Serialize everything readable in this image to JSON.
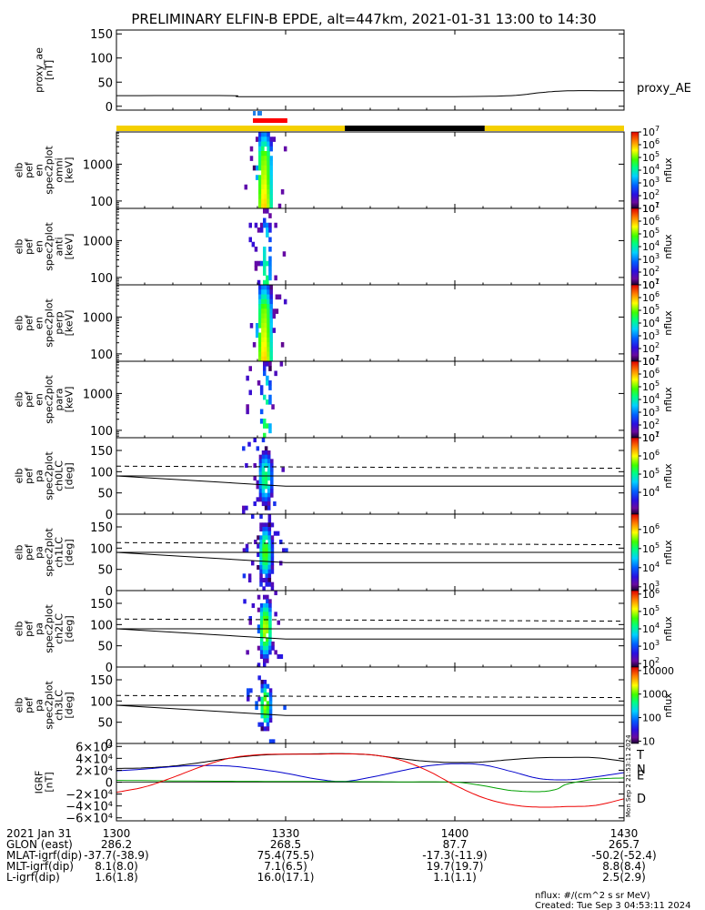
{
  "chart_data": {
    "type": "heatmap",
    "title": "PRELIMINARY ELFIN-B EPDE, alt=447km, 2021-01-31 13:00 to 14:30",
    "time_range_min": [
      0,
      90
    ],
    "x_ticks": [
      {
        "t": 0,
        "label": "1300"
      },
      {
        "t": 30,
        "label": "1330"
      },
      {
        "t": 60,
        "label": "1400"
      },
      {
        "t": 90,
        "label": "1430"
      }
    ],
    "science_zone": {
      "start_min": 26.8,
      "end_min": 33.2
    },
    "orbit_bar": [
      {
        "start": 0,
        "end": 40.5,
        "color": "#f5d000"
      },
      {
        "start": 40.5,
        "end": 65.3,
        "color": "#000000"
      },
      {
        "start": 65.3,
        "end": 90,
        "color": "#f5d000"
      }
    ],
    "marker_segments": [
      {
        "start": 24.2,
        "end": 24.7,
        "row": 0,
        "color": "#1f7fe8"
      },
      {
        "start": 25.0,
        "end": 25.8,
        "row": 0,
        "color": "#1f7fe8"
      },
      {
        "start": 24.2,
        "end": 30.3,
        "row": 1,
        "color": "#ff0000"
      }
    ],
    "panels": [
      {
        "id": "proxy_ae",
        "kind": "line",
        "ylabel": [
          "proxy_ae",
          "[nT]"
        ],
        "ylim": [
          -8,
          158
        ],
        "yticks": [
          0,
          50,
          100,
          150
        ],
        "side_label": "proxy_AE",
        "series": [
          {
            "name": "proxy_AE",
            "x": [
              0,
              20,
              22,
              35,
              60,
              70,
              75,
              80,
              90
            ],
            "y": [
              22,
              22,
              20,
              20,
              20,
              22,
              28,
              32,
              32
            ]
          }
        ]
      },
      {
        "id": "en_omni",
        "kind": "energy",
        "ylabel": [
          "elb",
          "pef",
          "en",
          "spec2plot",
          "omni",
          "[keV]"
        ],
        "ylim_log": [
          63,
          7500
        ],
        "yticks": [
          {
            "v": 100,
            "label": "100"
          },
          {
            "v": 1000,
            "label": "1000"
          }
        ],
        "cmin": 1,
        "cmax": 7,
        "cbar_ticks": [
          1,
          2,
          3,
          4,
          5,
          6,
          7
        ],
        "cbar_label": "nflux",
        "blob": {
          "center": 26.0,
          "half_width": 1.2,
          "peak": 5.9,
          "rolloff": 1.8,
          "density": 0.95
        }
      },
      {
        "id": "en_anti",
        "kind": "energy",
        "ylabel": [
          "elb",
          "pef",
          "en",
          "spec2plot",
          "anti",
          "[keV]"
        ],
        "ylim_log": [
          63,
          7500
        ],
        "yticks": [
          {
            "v": 100,
            "label": "100"
          },
          {
            "v": 1000,
            "label": "1000"
          }
        ],
        "cmin": 1,
        "cmax": 7,
        "cbar_ticks": [
          1,
          2,
          3,
          4,
          5,
          6,
          7
        ],
        "cbar_label": "nflux",
        "blob": {
          "center": 26.3,
          "half_width": 0.7,
          "peak": 4.5,
          "rolloff": 1.2,
          "density": 0.55
        }
      },
      {
        "id": "en_perp",
        "kind": "energy",
        "ylabel": [
          "elb",
          "pef",
          "en",
          "spec2plot",
          "perp",
          "[keV]"
        ],
        "ylim_log": [
          63,
          7500
        ],
        "yticks": [
          {
            "v": 100,
            "label": "100"
          },
          {
            "v": 1000,
            "label": "1000"
          }
        ],
        "cmin": 1,
        "cmax": 7,
        "cbar_ticks": [
          1,
          2,
          3,
          4,
          5,
          6,
          7
        ],
        "cbar_label": "nflux",
        "blob": {
          "center": 26.0,
          "half_width": 1.2,
          "peak": 5.9,
          "rolloff": 1.8,
          "density": 0.95
        }
      },
      {
        "id": "en_para",
        "kind": "energy",
        "ylabel": [
          "elb",
          "pef",
          "en",
          "spec2plot",
          "para",
          "[keV]"
        ],
        "ylim_log": [
          63,
          7500
        ],
        "yticks": [
          {
            "v": 100,
            "label": "100"
          },
          {
            "v": 1000,
            "label": "1000"
          }
        ],
        "cmin": 1,
        "cmax": 7,
        "cbar_ticks": [
          1,
          2,
          3,
          4,
          5,
          6,
          7
        ],
        "cbar_label": "nflux",
        "blob": {
          "center": 26.3,
          "half_width": 0.7,
          "peak": 4.8,
          "rolloff": 1.3,
          "density": 0.5
        }
      },
      {
        "id": "pa_ch0",
        "kind": "pa",
        "ylabel": [
          "elb",
          "pef",
          "pa",
          "spec2plot",
          "ch0LC",
          "[deg]"
        ],
        "ylim": [
          0,
          180
        ],
        "yticks": [
          0,
          50,
          100,
          150
        ],
        "cmin": 2.8,
        "cmax": 7,
        "cbar_ticks": [
          4,
          5,
          6,
          7
        ],
        "cbar_label": "nflux",
        "blob": {
          "center": 26.2,
          "half_width": 1.3,
          "peak": 5.2,
          "rolloff": 1.6,
          "pa_center": 85,
          "pa_half": 55,
          "density": 0.95
        }
      },
      {
        "id": "pa_ch1",
        "kind": "pa",
        "ylabel": [
          "elb",
          "pef",
          "pa",
          "spec2plot",
          "ch1LC",
          "[deg]"
        ],
        "ylim": [
          0,
          180
        ],
        "yticks": [
          0,
          50,
          100,
          150
        ],
        "cmin": 2.8,
        "cmax": 6.8,
        "cbar_ticks": [
          3,
          4,
          5,
          6
        ],
        "cbar_label": "nflux",
        "blob": {
          "center": 26.2,
          "half_width": 1.2,
          "peak": 5.4,
          "rolloff": 1.6,
          "pa_center": 90,
          "pa_half": 55,
          "density": 0.95
        }
      },
      {
        "id": "pa_ch2",
        "kind": "pa",
        "ylabel": [
          "elb",
          "pef",
          "pa",
          "spec2plot",
          "ch2LC",
          "[deg]"
        ],
        "ylim": [
          0,
          180
        ],
        "yticks": [
          0,
          50,
          100,
          150
        ],
        "cmin": 1.8,
        "cmax": 6.2,
        "cbar_ticks": [
          2,
          3,
          4,
          5,
          6
        ],
        "cbar_label": "nflux",
        "blob": {
          "center": 26.2,
          "half_width": 1.1,
          "peak": 5.0,
          "rolloff": 1.6,
          "pa_center": 90,
          "pa_half": 55,
          "density": 0.95
        }
      },
      {
        "id": "pa_ch3",
        "kind": "pa",
        "ylabel": [
          "elb",
          "pef",
          "pa",
          "spec2plot",
          "ch3LC",
          "[deg]"
        ],
        "ylim": [
          0,
          180
        ],
        "yticks": [
          0,
          50,
          100,
          150
        ],
        "cmin": 0.9,
        "cmax": 4.15,
        "cbar_ticks_labeled": [
          {
            "v": 1,
            "label": "10"
          },
          {
            "v": 2,
            "label": "100"
          },
          {
            "v": 3,
            "label": "1000"
          },
          {
            "v": 4,
            "label": "10000"
          }
        ],
        "cbar_label": "nflux",
        "blob": {
          "center": 26.2,
          "half_width": 1.0,
          "peak": 3.2,
          "rolloff": 1.4,
          "pa_center": 90,
          "pa_half": 50,
          "density": 0.9
        }
      },
      {
        "id": "igrf",
        "kind": "line",
        "ylabel": [
          "IGRF",
          "[nT]"
        ],
        "ylim": [
          -65000,
          65000
        ],
        "yticks": [
          -60000,
          -40000,
          -20000,
          0,
          20000,
          40000,
          60000
        ],
        "ytick_labels": [
          "−6×10⁴",
          "−4×10⁴",
          "−2×10⁴",
          "0",
          "2×10⁴",
          "4×10⁴",
          "6×10⁴"
        ],
        "series": [
          {
            "name": "T",
            "color": "#000000",
            "x": [
              0,
              5,
              10,
              15,
              20,
              25,
              30,
              35,
              40,
              45,
              50,
              55,
              60,
              65,
              70,
              75,
              80,
              85,
              90
            ],
            "y": [
              23000,
              24000,
              27000,
              33000,
              40000,
              45000,
              47000,
              47500,
              48000,
              46000,
              40000,
              35000,
              33000,
              34000,
              38000,
              41000,
              41500,
              41000,
              35000
            ]
          },
          {
            "name": "N",
            "color": "#0000cc",
            "x": [
              0,
              5,
              10,
              15,
              20,
              25,
              30,
              35,
              40,
              45,
              50,
              55,
              60,
              65,
              70,
              75,
              80,
              85,
              90
            ],
            "y": [
              19000,
              22000,
              26000,
              28000,
              27000,
              22000,
              15000,
              6000,
              1000,
              8000,
              18000,
              27000,
              31000,
              29000,
              18000,
              6000,
              4000,
              9000,
              16000
            ]
          },
          {
            "name": "E",
            "color": "#00a000",
            "x": [
              0,
              10,
              20,
              30,
              40,
              50,
              60,
              65,
              70,
              75,
              78,
              80,
              85,
              90
            ],
            "y": [
              3000,
              2000,
              1500,
              1200,
              1000,
              500,
              0,
              -6000,
              -14000,
              -16000,
              -12000,
              -3000,
              5000,
              7000
            ]
          },
          {
            "name": "D",
            "color": "#ee0000",
            "x": [
              0,
              5,
              10,
              15,
              20,
              25,
              30,
              35,
              40,
              45,
              50,
              55,
              60,
              65,
              70,
              75,
              80,
              85,
              90
            ],
            "y": [
              -17000,
              -8000,
              8000,
              26000,
              40000,
              46000,
              47000,
              47000,
              47500,
              46000,
              38000,
              20000,
              -5000,
              -26000,
              -38000,
              -42000,
              -41000,
              -39000,
              -28000
            ]
          }
        ],
        "side_labels": [
          {
            "name": "T",
            "value": 47000
          },
          {
            "name": "N",
            "value": 22000
          },
          {
            "name": "E",
            "value": 12000
          },
          {
            "name": "D",
            "value": -27000
          }
        ]
      }
    ],
    "shared_overlays": {
      "pa_dashed_deg": [
        113,
        108
      ],
      "pa_solid_top_deg": 90,
      "pa_solid_lower_start_deg": 90,
      "pa_solid_lower_end_deg": 66,
      "pa_solid_lower_knee_min": 30
    },
    "footer_rows": [
      {
        "label": "2021 Jan 31",
        "values": [
          "1300",
          "1330",
          "1400",
          "1430"
        ]
      },
      {
        "label": "GLON (east)",
        "values": [
          "286.2",
          "268.5",
          "87.7",
          "265.7"
        ]
      },
      {
        "label": "MLAT-igrf(dip)",
        "values": [
          "-37.7(-38.9)",
          "75.4(75.5)",
          "-17.3(-11.9)",
          "-50.2(-52.4)"
        ]
      },
      {
        "label": "MLT-igrf(dip)",
        "values": [
          "8.1(8.0)",
          "7.1(6.5)",
          "19.7(19.7)",
          "8.8(8.4)"
        ]
      },
      {
        "label": "L-igrf(dip)",
        "values": [
          "1.6(1.8)",
          "16.0(17.1)",
          "1.1(1.1)",
          "2.5(2.9)"
        ]
      }
    ],
    "units_note": "nflux: #/(cm^2 s sr MeV)",
    "created_note": "Created: Tue Sep  3 04:53:11 2024",
    "vertical_stamp": "Mon Sep  2 21:53:11 2024"
  }
}
